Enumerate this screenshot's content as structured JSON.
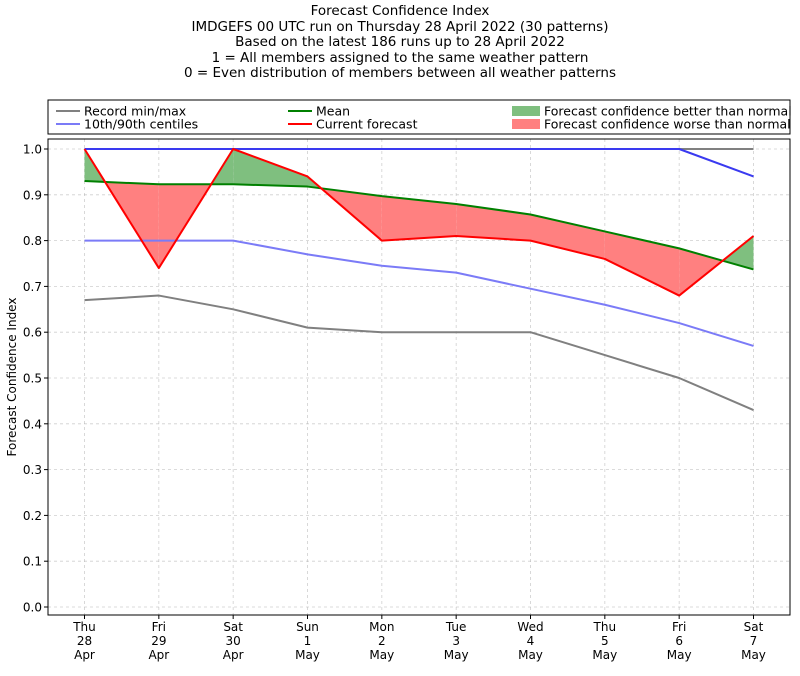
{
  "chart_data": {
    "type": "line",
    "title_lines": [
      "Forecast Confidence Index",
      "IMDGEFS 00 UTC run on Thursday 28 April 2022 (30 patterns)",
      "Based on the latest 186 runs up to 28 April 2022",
      "1 = All members assigned to the same weather pattern",
      "0 = Even distribution of members between all weather patterns"
    ],
    "ylabel": "Forecast Confidence Index",
    "ylim": [
      0,
      1
    ],
    "yticks": [
      "0.0",
      "0.1",
      "0.2",
      "0.3",
      "0.4",
      "0.5",
      "0.6",
      "0.7",
      "0.8",
      "0.9",
      "1.0"
    ],
    "categories": [
      [
        "Thu",
        "28",
        "Apr"
      ],
      [
        "Fri",
        "29",
        "Apr"
      ],
      [
        "Sat",
        "30",
        "Apr"
      ],
      [
        "Sun",
        "1",
        "May"
      ],
      [
        "Mon",
        "2",
        "May"
      ],
      [
        "Tue",
        "3",
        "May"
      ],
      [
        "Wed",
        "4",
        "May"
      ],
      [
        "Thu",
        "5",
        "May"
      ],
      [
        "Fri",
        "6",
        "May"
      ],
      [
        "Sat",
        "7",
        "May"
      ]
    ],
    "grid": true,
    "legend_position": "top",
    "series": {
      "record_max": [
        1.0,
        1.0,
        1.0,
        1.0,
        1.0,
        1.0,
        1.0,
        1.0,
        1.0,
        1.0
      ],
      "record_min": [
        0.67,
        0.68,
        0.65,
        0.61,
        0.6,
        0.6,
        0.6,
        0.55,
        0.5,
        0.43
      ],
      "p90": [
        1.0,
        1.0,
        1.0,
        1.0,
        1.0,
        1.0,
        1.0,
        1.0,
        1.0,
        0.94
      ],
      "p10": [
        0.8,
        0.8,
        0.8,
        0.77,
        0.745,
        0.73,
        0.695,
        0.66,
        0.62,
        0.57
      ],
      "mean": [
        0.93,
        0.923,
        0.923,
        0.918,
        0.897,
        0.88,
        0.857,
        0.82,
        0.783,
        0.737
      ],
      "current": [
        1.0,
        0.74,
        1.0,
        0.94,
        0.8,
        0.81,
        0.8,
        0.76,
        0.68,
        0.81
      ]
    },
    "legend": [
      {
        "label": "Record min/max",
        "kind": "line",
        "color": "#808080"
      },
      {
        "label": "Mean",
        "kind": "line",
        "color": "#008000"
      },
      {
        "label": "Forecast confidence better than normal",
        "kind": "patch",
        "color": "#7fbf7f"
      },
      {
        "label": "10th/90th centiles",
        "kind": "line",
        "color": "#7b7bf7"
      },
      {
        "label": "Current forecast",
        "kind": "line",
        "color": "#ff0000"
      },
      {
        "label": "Forecast confidence worse than normal",
        "kind": "patch",
        "color": "#ff8080"
      }
    ],
    "colors": {
      "record": "#808080",
      "centile": "#7b7bf7",
      "centile_top": "#3a3af0",
      "mean": "#008000",
      "current": "#ff0000",
      "better_fill": "#7fbf7f",
      "worse_fill": "#ff8080"
    }
  }
}
